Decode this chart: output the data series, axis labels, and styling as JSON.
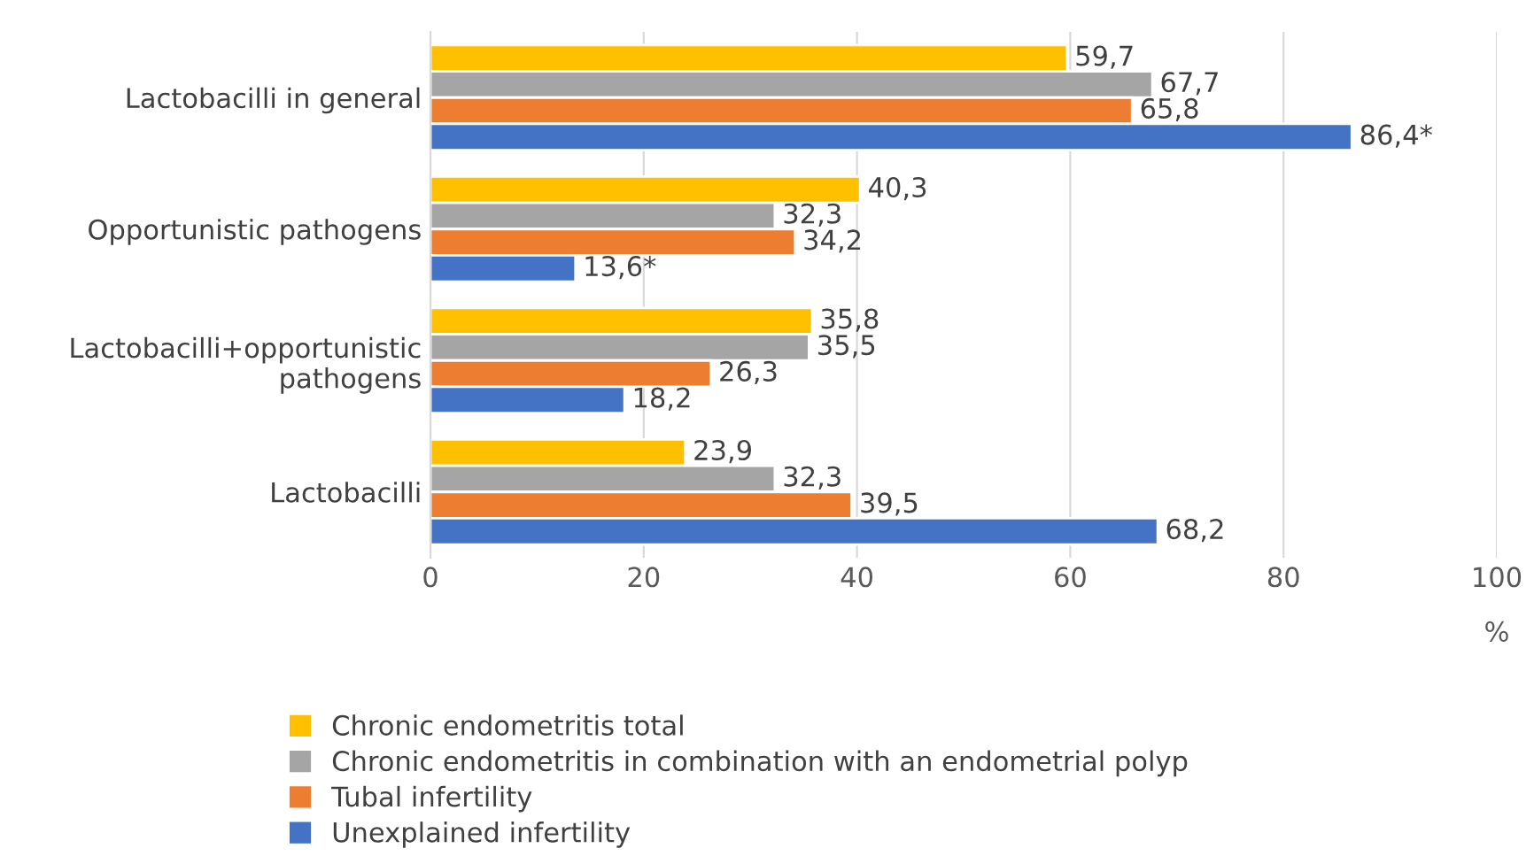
{
  "chart_data": {
    "type": "bar",
    "orientation": "horizontal",
    "categories": [
      "Lactobacilli in general",
      "Opportunistic pathogens",
      "Lactobacilli+opportunistic pathogens",
      "Lactobacilli"
    ],
    "series": [
      {
        "name": "Chronic endometritis total",
        "color": "#ffc000",
        "values": [
          59.7,
          40.3,
          35.8,
          23.9
        ],
        "value_labels": [
          "59,7",
          "40,3",
          "35,8",
          "23,9"
        ]
      },
      {
        "name": "Chronic endometritis in combination with an endometrial polyp",
        "color": "#a5a5a5",
        "values": [
          67.7,
          32.3,
          35.5,
          32.3
        ],
        "value_labels": [
          "67,7",
          "32,3",
          "35,5",
          "32,3"
        ]
      },
      {
        "name": "Tubal infertility",
        "color": "#ed7d31",
        "values": [
          65.8,
          34.2,
          26.3,
          39.5
        ],
        "value_labels": [
          "65,8",
          "34,2",
          "26,3",
          "39,5"
        ]
      },
      {
        "name": "Unexplained infertility",
        "color": "#4472c4",
        "values": [
          86.4,
          13.6,
          18.2,
          68.2
        ],
        "value_labels": [
          "86,4*",
          "13,6*",
          "18,2",
          "68,2"
        ]
      }
    ],
    "xlabel": "%",
    "xlim": [
      0,
      100
    ],
    "xticks": [
      0,
      20,
      40,
      60,
      80,
      100
    ],
    "grid": "x",
    "legend": "bottom"
  }
}
